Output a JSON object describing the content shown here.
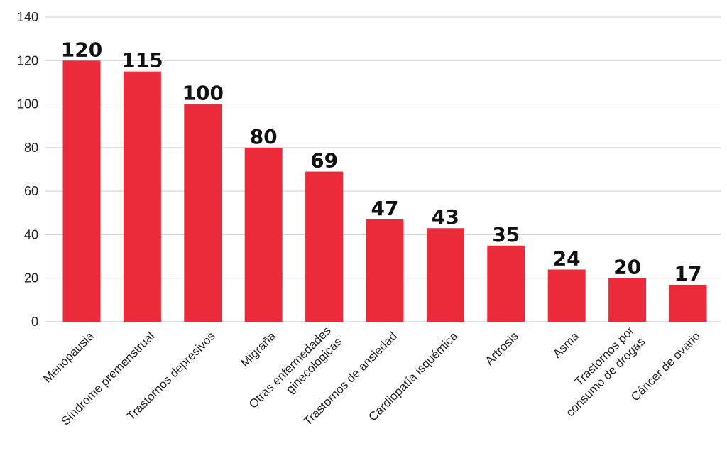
{
  "chart_data": {
    "type": "bar",
    "categories": [
      "Menopausia",
      "Síndrome premenstrual",
      "Trastornos depresivos",
      "Migraña",
      [
        "Otras enfermedades",
        "ginecológicas"
      ],
      "Trastornos de ansiedad",
      "Cardiopatía isquémica",
      "Artrosis",
      "Asma",
      [
        "Trastornos por",
        "consumo de drogas"
      ],
      "Cáncer de ovario"
    ],
    "values": [
      120,
      115,
      100,
      80,
      69,
      47,
      43,
      35,
      24,
      20,
      17
    ],
    "data_labels": [
      "120",
      "115",
      "100",
      "80",
      "69",
      "47",
      "43",
      "35",
      "24",
      "20",
      "17"
    ],
    "yticks": [
      0,
      20,
      40,
      60,
      80,
      100,
      120,
      140
    ],
    "ylim": [
      0,
      140
    ],
    "grid": true,
    "legend": "none",
    "bar_color": "#ec2b3a",
    "title": "",
    "xlabel": "",
    "ylabel": ""
  }
}
